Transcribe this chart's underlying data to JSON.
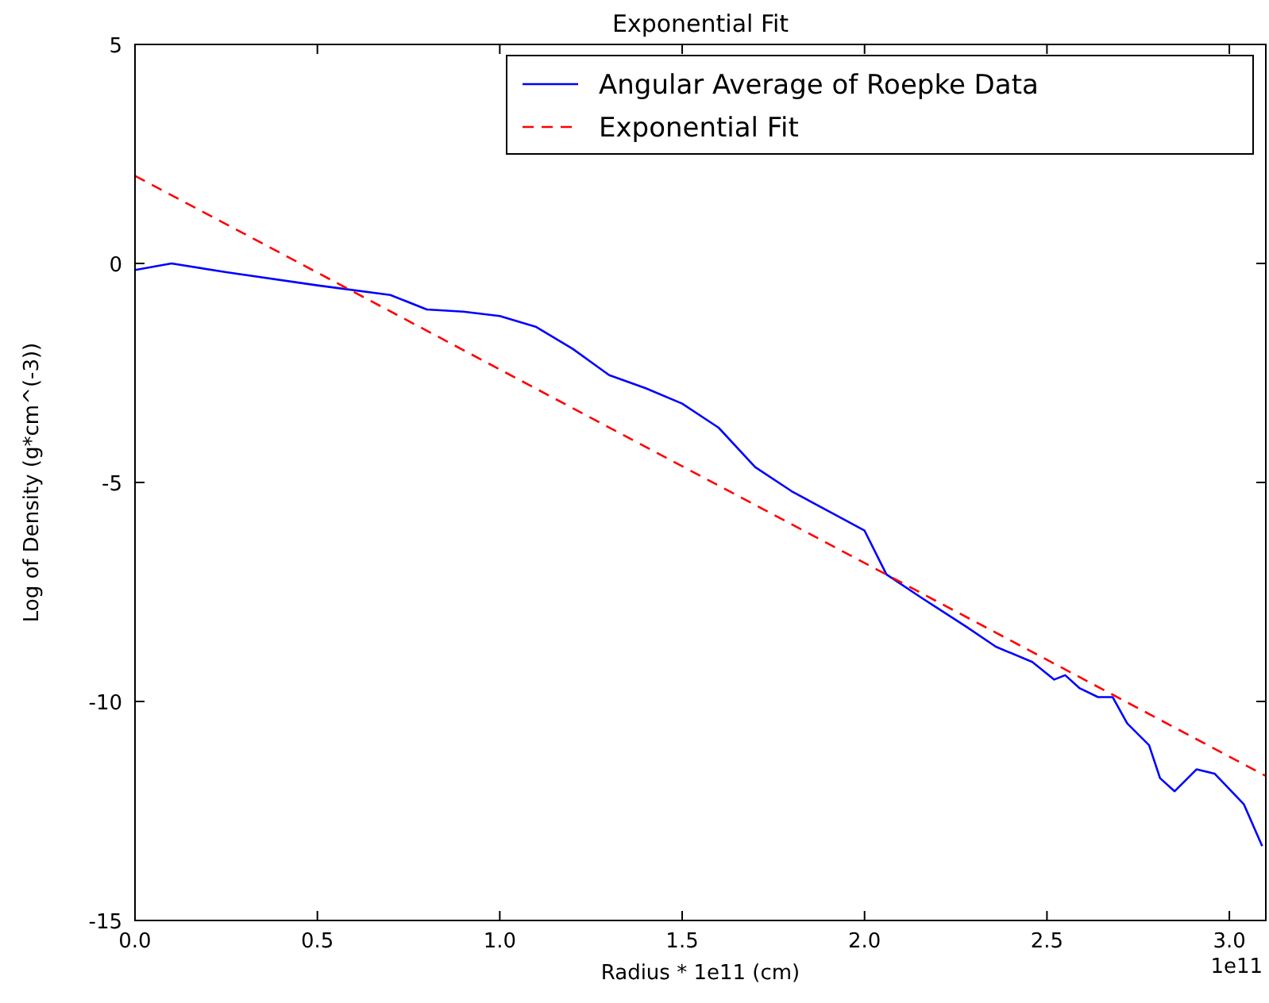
{
  "chart_data": {
    "type": "line",
    "title": "Exponential Fit",
    "xlabel": "Radius * 1e11 (cm)",
    "ylabel": "Log of Density (g*cm^(-3))",
    "xlim": [
      0,
      3.1
    ],
    "xticks": [
      {
        "value": 0,
        "label": "0.0"
      },
      {
        "value": 0.5,
        "label": "0.5"
      },
      {
        "value": 1,
        "label": "1.0"
      },
      {
        "value": 1.5,
        "label": "1.5"
      },
      {
        "value": 2,
        "label": "2.0"
      },
      {
        "value": 2.5,
        "label": "2.5"
      },
      {
        "value": 3,
        "label": "3.0"
      }
    ],
    "ylim": [
      -15,
      5
    ],
    "yticks": [
      -15,
      -10,
      -5,
      0,
      5
    ],
    "grid": false,
    "legend": "top right",
    "annotations": [
      "1e11"
    ],
    "series": [
      {
        "name": "Angular Average of Roepke Data",
        "color": "#0000ff",
        "line_style": "solid",
        "x": [
          0,
          0.1,
          0.25,
          0.5,
          0.7,
          0.8,
          0.9,
          1.0,
          1.1,
          1.2,
          1.3,
          1.4,
          1.5,
          1.6,
          1.7,
          1.8,
          1.9,
          2.0,
          2.06,
          2.15,
          2.28,
          2.36,
          2.46,
          2.52,
          2.55,
          2.59,
          2.64,
          2.68,
          2.72,
          2.78,
          2.81,
          2.85,
          2.91,
          2.96,
          3.04,
          3.09
        ],
        "values": [
          -0.15,
          0,
          -0.2,
          -0.5,
          -0.72,
          -1.05,
          -1.1,
          -1.2,
          -1.45,
          -1.95,
          -2.55,
          -2.85,
          -3.2,
          -3.75,
          -4.65,
          -5.2,
          -5.65,
          -6.1,
          -7.1,
          -7.6,
          -8.3,
          -8.75,
          -9.1,
          -9.5,
          -9.4,
          -9.7,
          -9.9,
          -9.9,
          -10.5,
          -11.0,
          -11.75,
          -12.05,
          -11.55,
          -11.65,
          -12.35,
          -13.3
        ]
      },
      {
        "name": "Exponential Fit",
        "color": "#ff0000",
        "line_style": "dashed",
        "x": [
          0,
          3.1
        ],
        "values": [
          2.0,
          -11.7
        ]
      }
    ]
  }
}
